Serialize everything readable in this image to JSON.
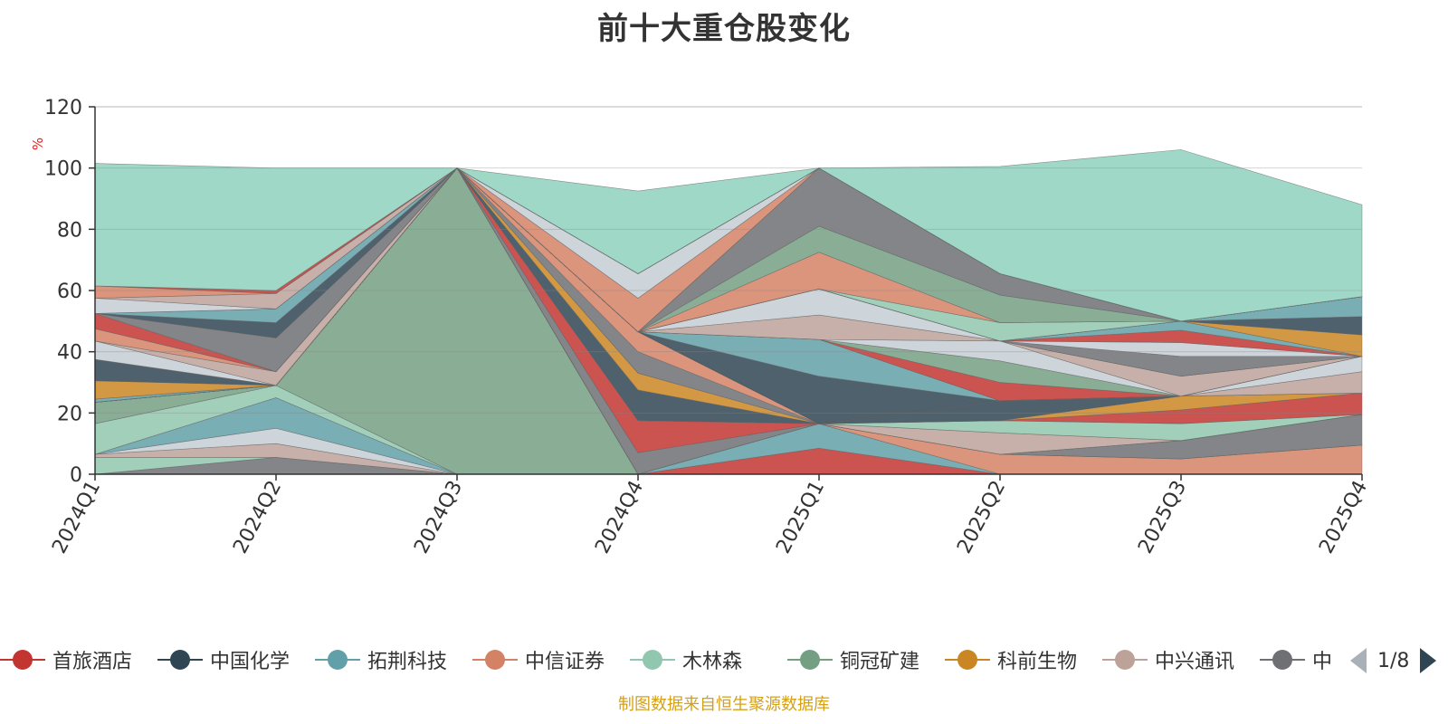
{
  "title": "前十大重仓股变化",
  "source_note": "制图数据来自恒生聚源数据库",
  "pager": {
    "text": "1/8"
  },
  "legend_visible": [
    {
      "name": "首旅酒店",
      "color": "#c23531"
    },
    {
      "name": "中国化学",
      "color": "#2f4554"
    },
    {
      "name": "拓荆科技",
      "color": "#61a0a8"
    },
    {
      "name": "中信证券",
      "color": "#d48265"
    },
    {
      "name": "木林森",
      "color": "#91c7ae"
    },
    {
      "name": "铜冠矿建",
      "color": "#749f83"
    },
    {
      "name": "科前生物",
      "color": "#ca8622"
    },
    {
      "name": "中兴通讯",
      "color": "#bda29a"
    },
    {
      "name": "中",
      "color": "#6e7074"
    }
  ],
  "chart_data": {
    "type": "area",
    "stacked": true,
    "title": "前十大重仓股变化",
    "ylabel": "%",
    "ylim": [
      0,
      120
    ],
    "yticks": [
      "0",
      "20",
      "40",
      "60",
      "80",
      "100",
      "120"
    ],
    "categories": [
      "2024Q1",
      "2024Q2",
      "2024Q3",
      "2024Q4",
      "2025Q1",
      "2025Q2",
      "2025Q3",
      "2025Q4"
    ],
    "grid": true,
    "series": [
      {
        "color": "#6e7074",
        "values": [
          0,
          5.5,
          0,
          0,
          0,
          0,
          0,
          0
        ]
      },
      {
        "color": "#91c7ae",
        "values": [
          5.5,
          0,
          0,
          0,
          0,
          0,
          0,
          0
        ]
      },
      {
        "color": "#bda29a",
        "values": [
          1,
          4.5,
          0,
          0,
          0,
          0,
          0,
          0
        ]
      },
      {
        "color": "#c4ccd3",
        "values": [
          0,
          5,
          0,
          0,
          0,
          0,
          0,
          0
        ]
      },
      {
        "color": "#61a0a8",
        "values": [
          0,
          10,
          0,
          0,
          0,
          0,
          0,
          0
        ]
      },
      {
        "color": "#91c7ae",
        "values": [
          10,
          4,
          0,
          0,
          0,
          0,
          0,
          0
        ]
      },
      {
        "color": "#749f83",
        "values": [
          7,
          0,
          100,
          0,
          0,
          0,
          0,
          0
        ]
      },
      {
        "color": "#c23531",
        "values": [
          0,
          0,
          0,
          0,
          8.5,
          0,
          0,
          0
        ]
      },
      {
        "color": "#61a0a8",
        "values": [
          0,
          0,
          0,
          0,
          8,
          0,
          0,
          0
        ]
      },
      {
        "color": "#d48265",
        "values": [
          0,
          0,
          0,
          0,
          0,
          6.5,
          5,
          9.5
        ]
      },
      {
        "color": "#ca8622",
        "values": [
          0,
          0,
          0,
          0,
          0,
          0,
          0,
          0
        ]
      },
      {
        "color": "#6e7074",
        "values": [
          0,
          0,
          0,
          7,
          0,
          0,
          6,
          10
        ]
      },
      {
        "color": "#c23531",
        "values": [
          0,
          0,
          0,
          10.5,
          0,
          0,
          0,
          0
        ]
      },
      {
        "color": "#2f4554",
        "values": [
          0,
          0,
          0,
          10,
          0,
          0,
          0,
          0
        ]
      },
      {
        "color": "#ca8622",
        "values": [
          0,
          0,
          0,
          5.5,
          0,
          0,
          0,
          0
        ]
      },
      {
        "color": "#6e7074",
        "values": [
          0,
          0,
          0,
          7,
          0,
          0,
          0,
          0
        ]
      },
      {
        "color": "#d48265",
        "values": [
          0,
          0,
          0,
          6.5,
          0,
          0,
          0,
          0
        ]
      },
      {
        "color": "#bda29a",
        "values": [
          0,
          0,
          0,
          0,
          0,
          7,
          0,
          0
        ]
      },
      {
        "color": "#91c7ae",
        "values": [
          0,
          0,
          0,
          0,
          0,
          4,
          5.5,
          0
        ]
      },
      {
        "color": "#c23531",
        "values": [
          0,
          0,
          0,
          0,
          0,
          0,
          4.5,
          7
        ]
      },
      {
        "color": "#ca8622",
        "values": [
          0,
          0,
          0,
          0,
          0,
          0,
          4.5,
          0
        ]
      },
      {
        "color": "#2f4554",
        "values": [
          0,
          0,
          0,
          0,
          0,
          6.5,
          0,
          0
        ]
      },
      {
        "color": "#bda29a",
        "values": [
          0,
          0,
          0,
          0,
          0,
          0,
          0,
          7
        ]
      },
      {
        "color": "#c4ccd3",
        "values": [
          0,
          0,
          0,
          0,
          0,
          0,
          0,
          5
        ]
      },
      {
        "color": "#2f4554",
        "values": [
          0,
          0,
          0,
          0,
          15.5,
          0,
          0,
          0
        ]
      },
      {
        "color": "#61a0a8",
        "values": [
          0,
          0,
          0,
          0,
          12,
          0,
          0,
          0
        ]
      },
      {
        "color": "#c23531",
        "values": [
          0,
          0,
          0,
          0,
          0,
          6,
          0,
          0
        ]
      },
      {
        "color": "#749f83",
        "values": [
          0,
          0,
          0,
          0,
          0,
          7,
          0,
          0
        ]
      },
      {
        "color": "#c4ccd3",
        "values": [
          0,
          0,
          0,
          0,
          0,
          6.5,
          0,
          0
        ]
      },
      {
        "color": "#bda29a",
        "values": [
          0,
          0,
          0,
          0,
          8,
          0,
          6.5,
          0
        ]
      },
      {
        "color": "#c4ccd3",
        "values": [
          0,
          0,
          0,
          0,
          8.5,
          0,
          0,
          0
        ]
      },
      {
        "color": "#6e7074",
        "values": [
          0,
          0,
          0,
          0,
          0,
          0,
          6.5,
          0
        ]
      },
      {
        "color": "#c4ccd3",
        "values": [
          0,
          0,
          0,
          0,
          0,
          0,
          4.5,
          0
        ]
      },
      {
        "color": "#c23531",
        "values": [
          0,
          0,
          0,
          0,
          0,
          0,
          4,
          0
        ]
      },
      {
        "color": "#61a0a8",
        "values": [
          1,
          0,
          0,
          0,
          0,
          0,
          3,
          0
        ]
      },
      {
        "color": "#ca8622",
        "values": [
          6,
          0,
          0,
          0,
          0,
          0,
          0,
          7
        ]
      },
      {
        "color": "#2f4554",
        "values": [
          7,
          0,
          0,
          0,
          0,
          0,
          0,
          6
        ]
      },
      {
        "color": "#61a0a8",
        "values": [
          0,
          0,
          0,
          0,
          0,
          0,
          0,
          6.5
        ]
      },
      {
        "color": "#bda29a",
        "values": [
          0,
          0,
          0,
          0,
          0,
          0,
          0,
          0
        ]
      },
      {
        "color": "#91c7ae",
        "values": [
          0,
          0,
          0,
          0,
          0,
          6,
          0,
          0
        ]
      },
      {
        "color": "#d48265",
        "values": [
          0,
          0,
          0,
          0,
          12,
          0,
          0,
          0
        ]
      },
      {
        "color": "#749f83",
        "values": [
          0,
          0,
          0,
          0,
          8.5,
          9,
          0,
          0
        ]
      },
      {
        "color": "#6e7074",
        "values": [
          0,
          0,
          0,
          0,
          19,
          7,
          0,
          0
        ]
      },
      {
        "color": "#bda29a",
        "values": [
          0,
          0,
          0,
          0,
          0,
          0,
          0,
          0
        ]
      },
      {
        "color": "#d48265",
        "values": [
          0,
          0,
          0,
          11,
          0,
          0,
          0,
          0
        ]
      },
      {
        "color": "#c4ccd3",
        "values": [
          0,
          0,
          0,
          8,
          0,
          0,
          0,
          0
        ]
      },
      {
        "color": "#91c7ae",
        "values": [
          0,
          0,
          0,
          0,
          0,
          0,
          0,
          0
        ]
      },
      {
        "color": "#6e7074",
        "values": [
          0,
          0,
          0,
          0,
          0,
          0,
          0,
          0
        ]
      },
      {
        "color": "#c4ccd3",
        "values": [
          6,
          0,
          0,
          0,
          0,
          0,
          0,
          0
        ]
      },
      {
        "color": "#bda29a",
        "values": [
          0,
          4.5,
          0,
          0,
          0,
          0,
          0,
          0
        ]
      },
      {
        "color": "#d48265",
        "values": [
          4,
          0,
          0,
          0,
          0,
          0,
          0,
          0
        ]
      },
      {
        "color": "#c23531",
        "values": [
          5,
          0,
          0,
          0,
          0,
          0,
          0,
          0
        ]
      },
      {
        "color": "#6e7074",
        "values": [
          0,
          11,
          0,
          0,
          0,
          0,
          0,
          0
        ]
      },
      {
        "color": "#2f4554",
        "values": [
          0,
          5,
          0,
          0,
          0,
          0,
          0,
          0
        ]
      },
      {
        "color": "#61a0a8",
        "values": [
          0,
          4.5,
          0,
          0,
          0,
          0,
          0,
          0
        ]
      },
      {
        "color": "#ca8622",
        "values": [
          0,
          0,
          0,
          0,
          0,
          0,
          0,
          0
        ]
      },
      {
        "color": "#c4ccd3",
        "values": [
          5,
          0,
          0,
          0,
          0,
          0,
          0,
          0
        ]
      },
      {
        "color": "#bda29a",
        "values": [
          0,
          5,
          0,
          0,
          0,
          0,
          0,
          0
        ]
      },
      {
        "color": "#d48265",
        "values": [
          4,
          0,
          0,
          0,
          0,
          0,
          0,
          0
        ]
      },
      {
        "color": "#c23531",
        "values": [
          0,
          1,
          0,
          0,
          0,
          0,
          0,
          0
        ]
      },
      {
        "color": "#8fd1bd",
        "values": [
          40,
          40,
          0,
          27,
          0,
          35,
          56,
          30
        ]
      }
    ]
  }
}
